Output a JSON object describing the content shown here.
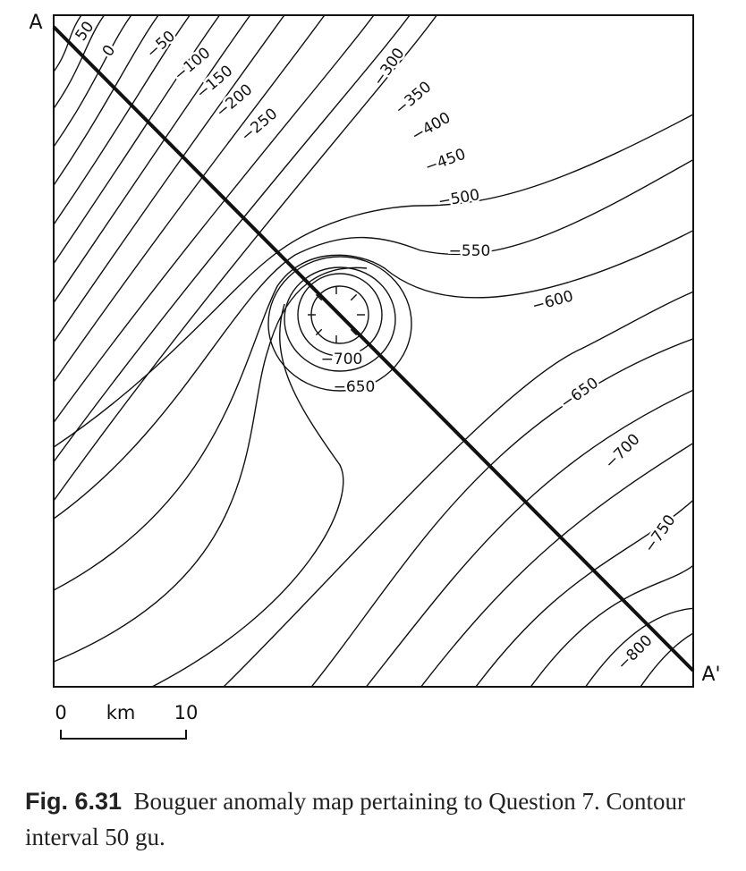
{
  "figure": {
    "profile": {
      "start": "A",
      "end": "A'"
    },
    "contour_labels": [
      "50",
      "0",
      "−50",
      "−100",
      "−150",
      "−200",
      "−250",
      "−300",
      "−350",
      "−400",
      "−450",
      "−500",
      "−550",
      "−600",
      "−700",
      "−650",
      "−650",
      "−700",
      "−750",
      "−800"
    ],
    "scale": {
      "start": "0",
      "unit": "km",
      "end": "10"
    },
    "caption": {
      "number": "Fig. 6.31",
      "text": "Bouguer anomaly map pertaining to Question 7. Contour interval 50 gu."
    }
  }
}
